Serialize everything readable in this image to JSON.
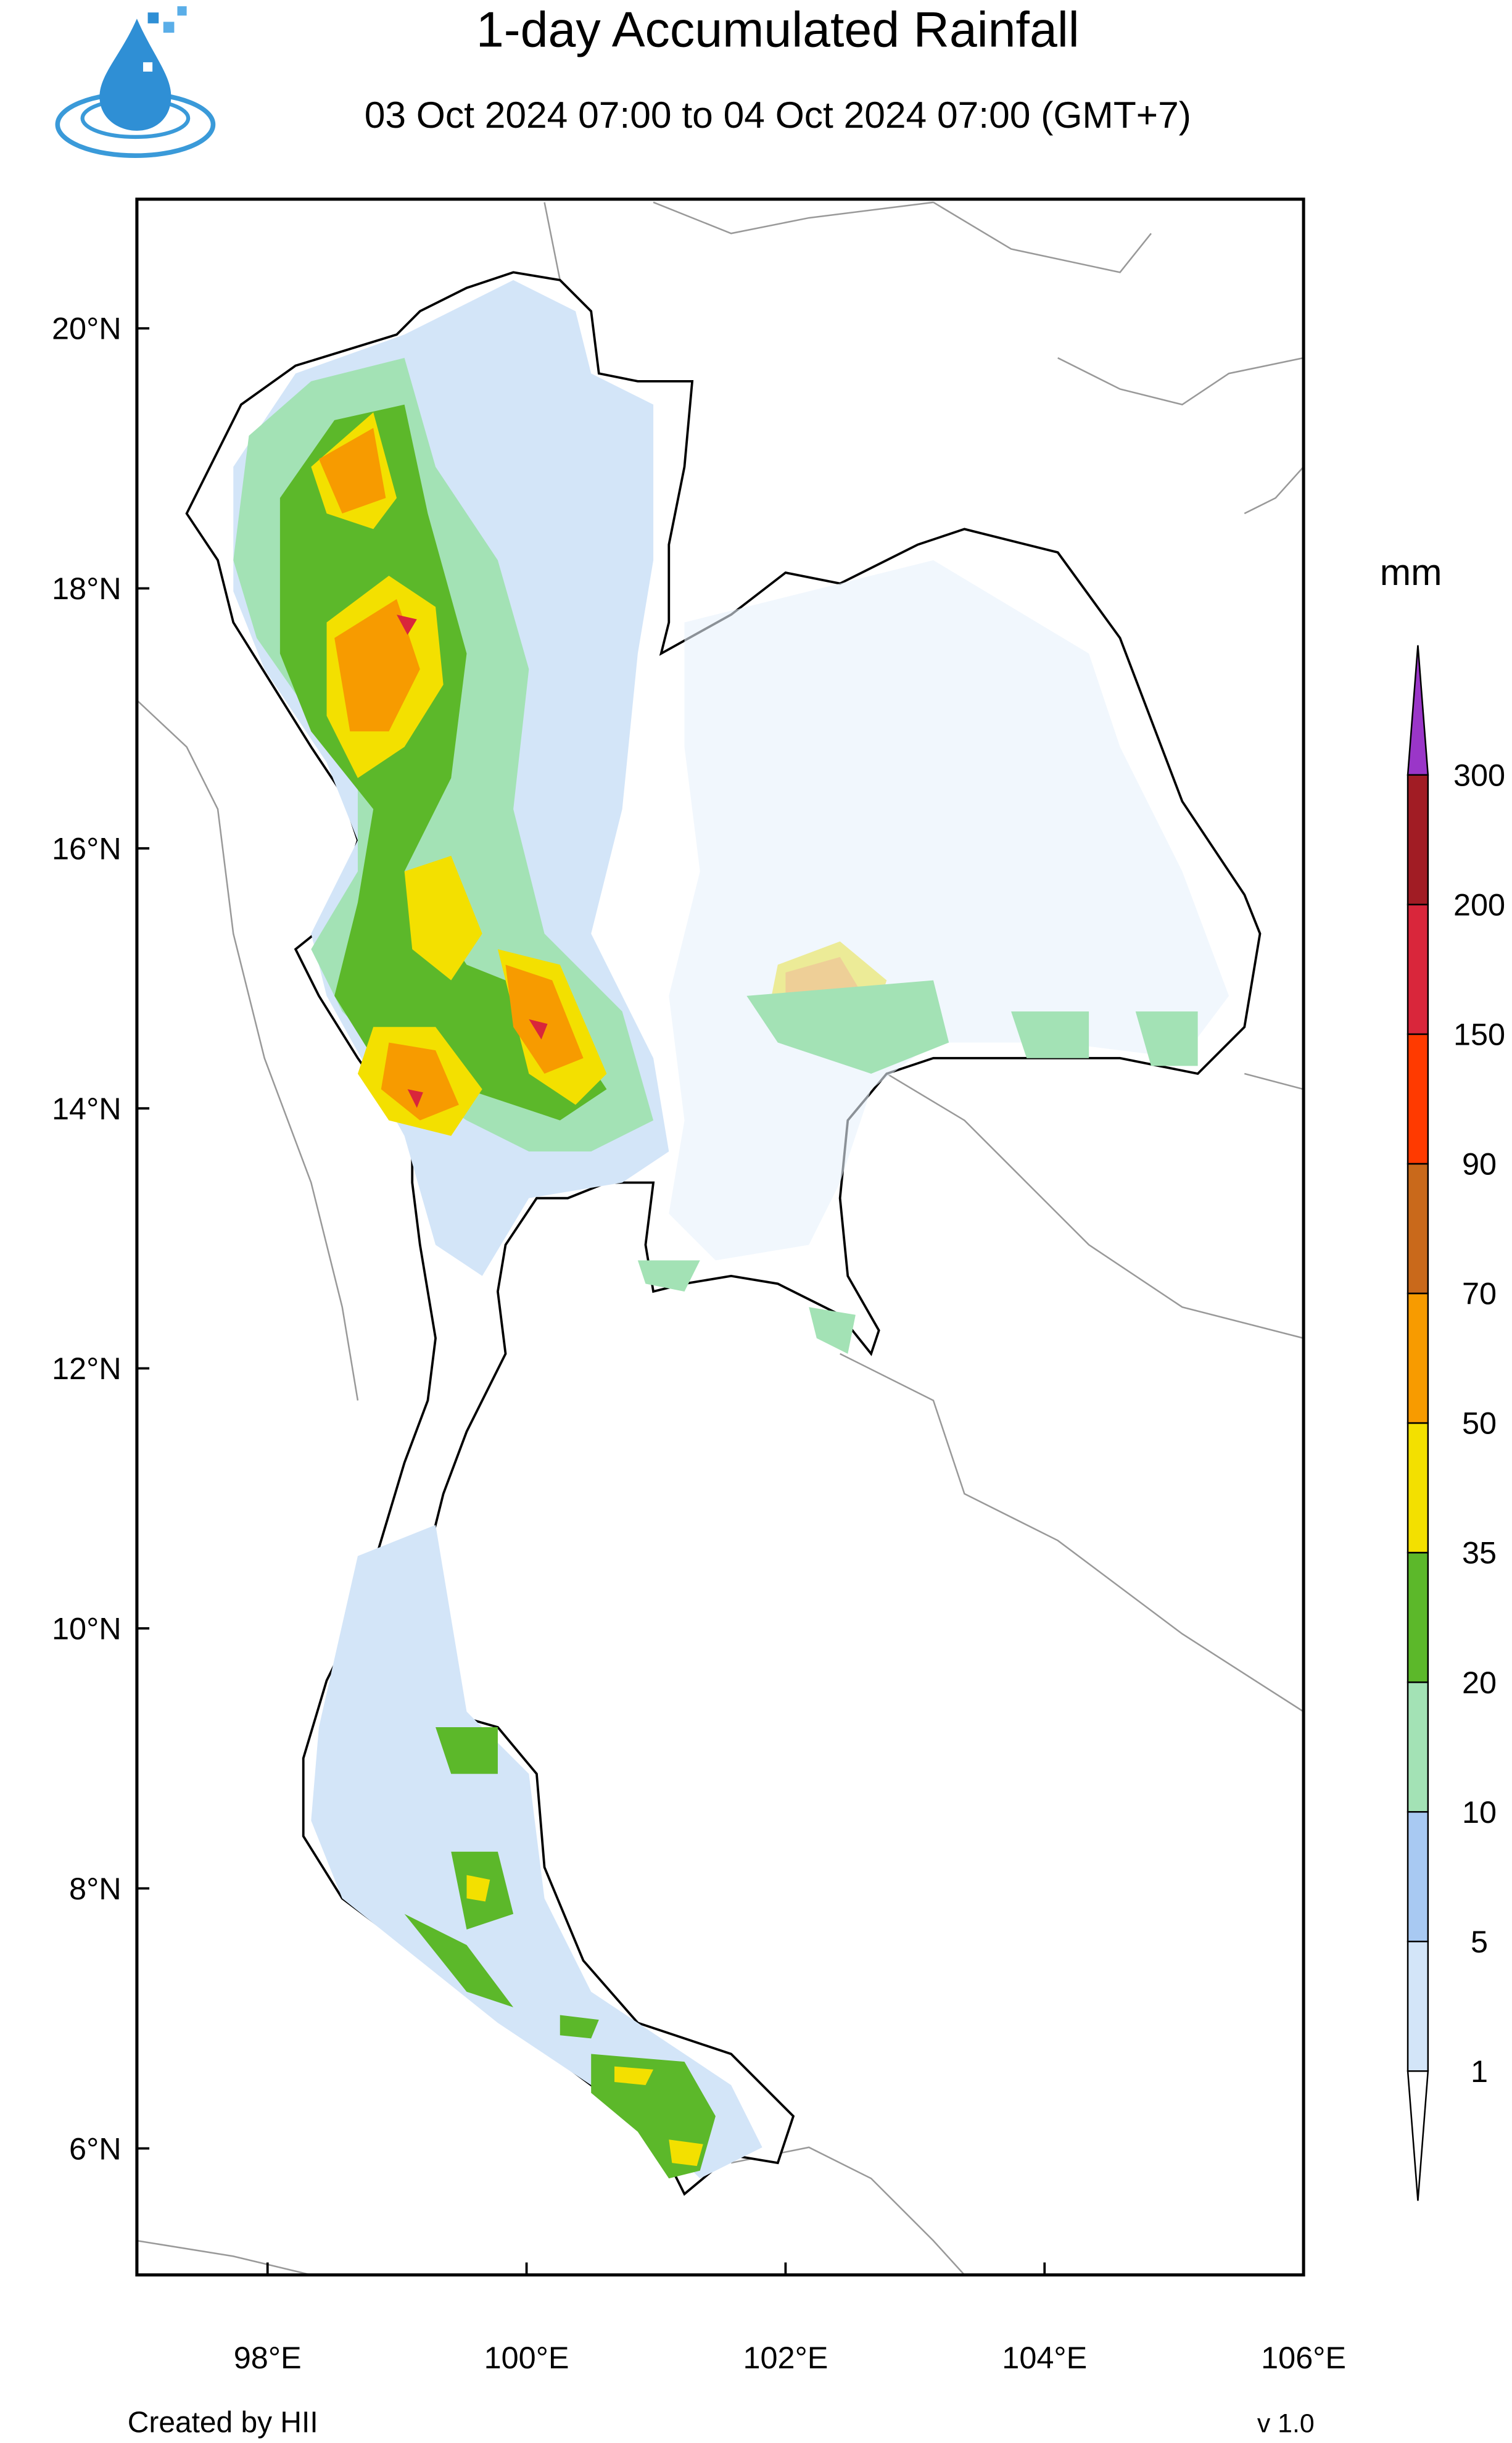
{
  "header": {
    "title": "1-day Accumulated Rainfall",
    "subtitle": "03 Oct 2024 07:00 to 04 Oct 2024 07:00 (GMT+7)"
  },
  "map": {
    "lat_ticks": [
      "20°N",
      "18°N",
      "16°N",
      "14°N",
      "12°N",
      "10°N",
      "8°N",
      "6°N"
    ],
    "lon_ticks": [
      "98°E",
      "100°E",
      "102°E",
      "104°E",
      "106°E"
    ]
  },
  "legend": {
    "unit": "mm",
    "levels": [
      1,
      5,
      10,
      20,
      35,
      50,
      70,
      90,
      150,
      200,
      300
    ],
    "colors": [
      "#ffffff",
      "#d3e5f8",
      "#a8c9f2",
      "#a3e2b5",
      "#5cb82a",
      "#f3e000",
      "#f79b00",
      "#c9691b",
      "#ff3a00",
      "#d9263b",
      "#a11c24",
      "#9a36c8"
    ]
  },
  "footer": {
    "credit": "Created by HII",
    "version": "v 1.0"
  }
}
